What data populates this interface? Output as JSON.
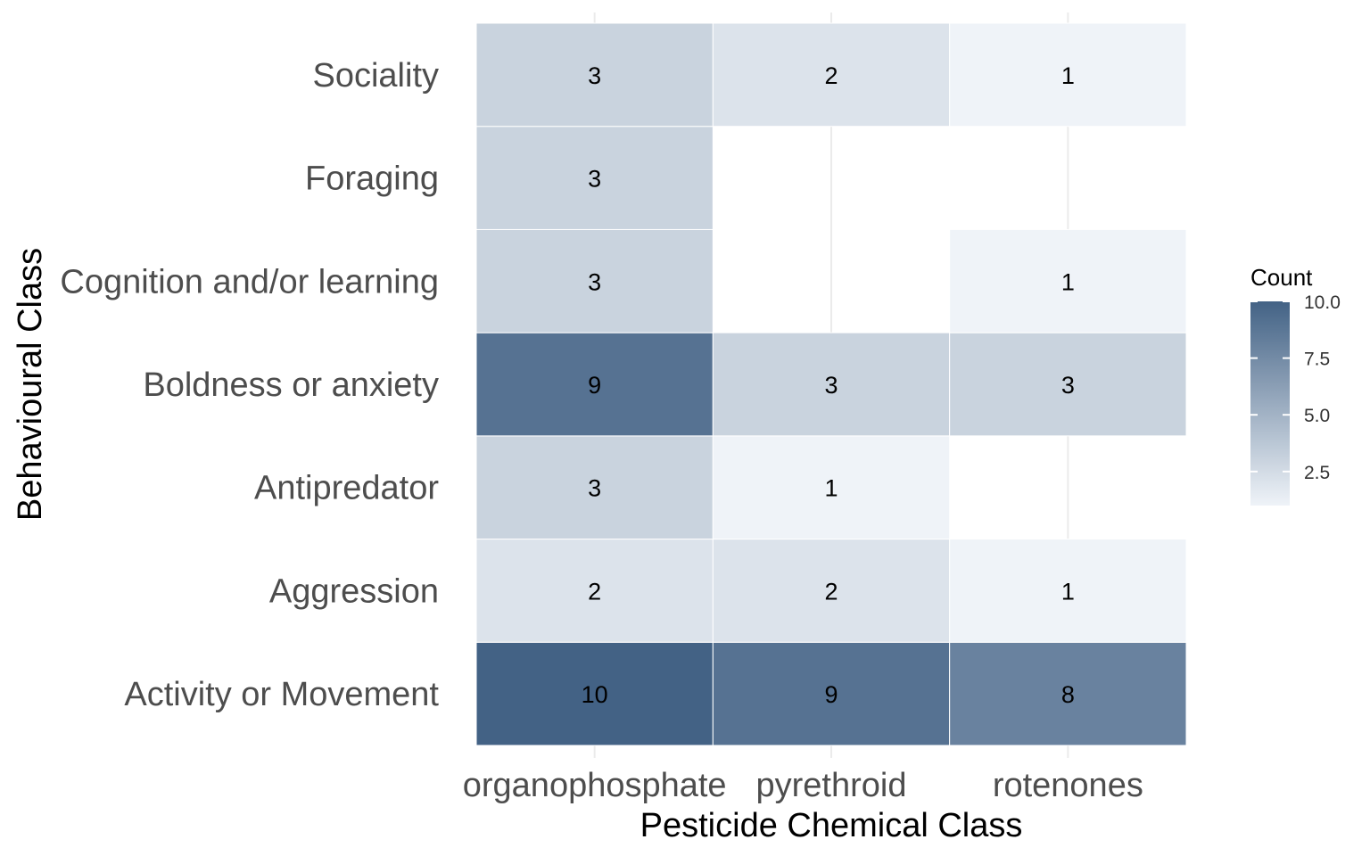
{
  "chart_data": {
    "type": "heatmap",
    "xlabel": "Pesticide Chemical Class",
    "ylabel": "Behavioural Class",
    "x_categories": [
      "organophosphate",
      "pyrethroid",
      "rotenones"
    ],
    "y_categories": [
      "Activity or Movement",
      "Aggression",
      "Antipredator",
      "Boldness or anxiety",
      "Cognition and/or learning",
      "Foraging",
      "Sociality"
    ],
    "cells": [
      {
        "x": "organophosphate",
        "y": "Activity or Movement",
        "value": 10
      },
      {
        "x": "pyrethroid",
        "y": "Activity or Movement",
        "value": 9
      },
      {
        "x": "rotenones",
        "y": "Activity or Movement",
        "value": 8
      },
      {
        "x": "organophosphate",
        "y": "Aggression",
        "value": 2
      },
      {
        "x": "pyrethroid",
        "y": "Aggression",
        "value": 2
      },
      {
        "x": "rotenones",
        "y": "Aggression",
        "value": 1
      },
      {
        "x": "organophosphate",
        "y": "Antipredator",
        "value": 3
      },
      {
        "x": "pyrethroid",
        "y": "Antipredator",
        "value": 1
      },
      {
        "x": "organophosphate",
        "y": "Boldness or anxiety",
        "value": 9
      },
      {
        "x": "pyrethroid",
        "y": "Boldness or anxiety",
        "value": 3
      },
      {
        "x": "rotenones",
        "y": "Boldness or anxiety",
        "value": 3
      },
      {
        "x": "organophosphate",
        "y": "Cognition and/or learning",
        "value": 3
      },
      {
        "x": "rotenones",
        "y": "Cognition and/or learning",
        "value": 1
      },
      {
        "x": "organophosphate",
        "y": "Foraging",
        "value": 3
      },
      {
        "x": "organophosphate",
        "y": "Sociality",
        "value": 3
      },
      {
        "x": "pyrethroid",
        "y": "Sociality",
        "value": 2
      },
      {
        "x": "rotenones",
        "y": "Sociality",
        "value": 1
      }
    ],
    "legend": {
      "title": "Count",
      "position": "right",
      "range": [
        1,
        10
      ],
      "ticks": [
        2.5,
        5.0,
        7.5,
        10.0
      ],
      "tick_labels": [
        "2.5",
        "5.0",
        "7.5",
        "10.0"
      ],
      "low_color": "#eff3f8",
      "high_color": "#436285"
    },
    "grid": true
  }
}
